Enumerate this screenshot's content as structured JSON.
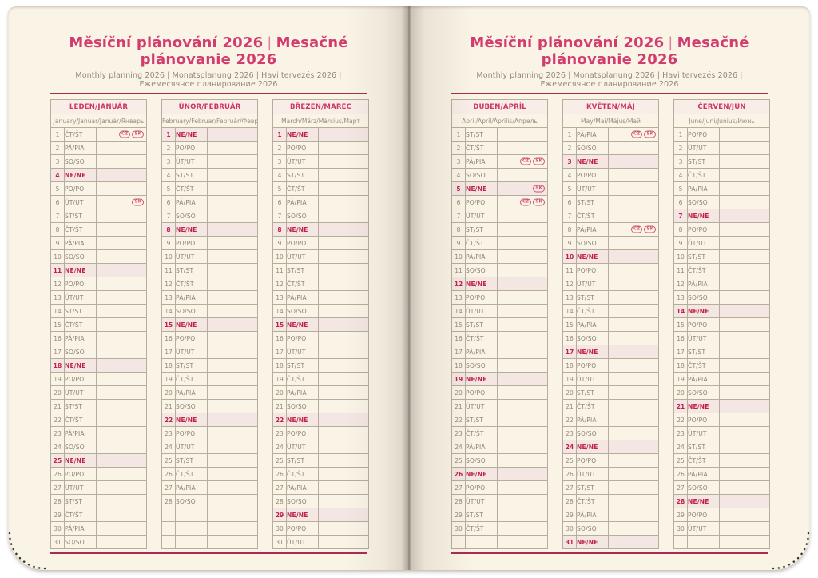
{
  "header": {
    "title_cz": "Měsíční plánování 2026",
    "separator": "|",
    "title_sk": "Mesačné plánovanie 2026",
    "subtitle": "Monthly planning 2026 | Monatsplanung 2026 | Havi tervezés 2026 | Ежемесячное планирование 2026"
  },
  "colors": {
    "title_pink": "#d23c6e",
    "rule_crimson": "#a82c52",
    "sunday_red": "#c02347",
    "sunday_row_bg": "#f4e7e3",
    "month_header_bg": "#f9ede8",
    "month_header_text": "#cf3464",
    "page_cream": "#faf4e7",
    "table_border": "#b6ad9d",
    "body_text": "#8a8173",
    "badge_red": "#cf5672"
  },
  "badge_labels": {
    "cz": "CZ",
    "sk": "SK"
  },
  "months": [
    {
      "id": "january",
      "title": "LEDEN/JANUÁR",
      "subtitle": "January/Januar/Január/Январь",
      "rows": [
        {
          "n": 1,
          "d": "ČT/ŠT",
          "b": [
            "CZ",
            "SK"
          ]
        },
        {
          "n": 2,
          "d": "PÁ/PIA"
        },
        {
          "n": 3,
          "d": "SO/SO"
        },
        {
          "n": 4,
          "d": "NE/NE",
          "s": true
        },
        {
          "n": 5,
          "d": "PO/PO"
        },
        {
          "n": 6,
          "d": "ÚT/UT",
          "b": [
            "SK"
          ]
        },
        {
          "n": 7,
          "d": "ST/ST"
        },
        {
          "n": 8,
          "d": "ČT/ŠT"
        },
        {
          "n": 9,
          "d": "PÁ/PIA"
        },
        {
          "n": 10,
          "d": "SO/SO"
        },
        {
          "n": 11,
          "d": "NE/NE",
          "s": true
        },
        {
          "n": 12,
          "d": "PO/PO"
        },
        {
          "n": 13,
          "d": "ÚT/UT"
        },
        {
          "n": 14,
          "d": "ST/ST"
        },
        {
          "n": 15,
          "d": "ČT/ŠT"
        },
        {
          "n": 16,
          "d": "PÁ/PIA"
        },
        {
          "n": 17,
          "d": "SO/SO"
        },
        {
          "n": 18,
          "d": "NE/NE",
          "s": true
        },
        {
          "n": 19,
          "d": "PO/PO"
        },
        {
          "n": 20,
          "d": "ÚT/UT"
        },
        {
          "n": 21,
          "d": "ST/ST"
        },
        {
          "n": 22,
          "d": "ČT/ŠT"
        },
        {
          "n": 23,
          "d": "PÁ/PIA"
        },
        {
          "n": 24,
          "d": "SO/SO"
        },
        {
          "n": 25,
          "d": "NE/NE",
          "s": true
        },
        {
          "n": 26,
          "d": "PO/PO"
        },
        {
          "n": 27,
          "d": "ÚT/UT"
        },
        {
          "n": 28,
          "d": "ST/ST"
        },
        {
          "n": 29,
          "d": "ČT/ŠT"
        },
        {
          "n": 30,
          "d": "PÁ/PIA"
        },
        {
          "n": 31,
          "d": "SO/SO"
        }
      ]
    },
    {
      "id": "february",
      "title": "ÚNOR/FEBRUÁR",
      "subtitle": "February/Februar/Február/Февраль",
      "rows": [
        {
          "n": 1,
          "d": "NE/NE",
          "s": true
        },
        {
          "n": 2,
          "d": "PO/PO"
        },
        {
          "n": 3,
          "d": "ÚT/UT"
        },
        {
          "n": 4,
          "d": "ST/ST"
        },
        {
          "n": 5,
          "d": "ČT/ŠT"
        },
        {
          "n": 6,
          "d": "PÁ/PIA"
        },
        {
          "n": 7,
          "d": "SO/SO"
        },
        {
          "n": 8,
          "d": "NE/NE",
          "s": true
        },
        {
          "n": 9,
          "d": "PO/PO"
        },
        {
          "n": 10,
          "d": "ÚT/UT"
        },
        {
          "n": 11,
          "d": "ST/ST"
        },
        {
          "n": 12,
          "d": "ČT/ŠT"
        },
        {
          "n": 13,
          "d": "PÁ/PIA"
        },
        {
          "n": 14,
          "d": "SO/SO"
        },
        {
          "n": 15,
          "d": "NE/NE",
          "s": true
        },
        {
          "n": 16,
          "d": "PO/PO"
        },
        {
          "n": 17,
          "d": "ÚT/UT"
        },
        {
          "n": 18,
          "d": "ST/ST"
        },
        {
          "n": 19,
          "d": "ČT/ŠT"
        },
        {
          "n": 20,
          "d": "PÁ/PIA"
        },
        {
          "n": 21,
          "d": "SO/SO"
        },
        {
          "n": 22,
          "d": "NE/NE",
          "s": true
        },
        {
          "n": 23,
          "d": "PO/PO"
        },
        {
          "n": 24,
          "d": "ÚT/UT"
        },
        {
          "n": 25,
          "d": "ST/ST"
        },
        {
          "n": 26,
          "d": "ČT/ŠT"
        },
        {
          "n": 27,
          "d": "PÁ/PIA"
        },
        {
          "n": 28,
          "d": "SO/SO"
        },
        {
          "n": "",
          "d": ""
        },
        {
          "n": "",
          "d": ""
        },
        {
          "n": "",
          "d": ""
        }
      ]
    },
    {
      "id": "march",
      "title": "BŘEZEN/MAREC",
      "subtitle": "March/März/Március/Март",
      "rows": [
        {
          "n": 1,
          "d": "NE/NE",
          "s": true
        },
        {
          "n": 2,
          "d": "PO/PO"
        },
        {
          "n": 3,
          "d": "ÚT/UT"
        },
        {
          "n": 4,
          "d": "ST/ST"
        },
        {
          "n": 5,
          "d": "ČT/ŠT"
        },
        {
          "n": 6,
          "d": "PÁ/PIA"
        },
        {
          "n": 7,
          "d": "SO/SO"
        },
        {
          "n": 8,
          "d": "NE/NE",
          "s": true
        },
        {
          "n": 9,
          "d": "PO/PO"
        },
        {
          "n": 10,
          "d": "ÚT/UT"
        },
        {
          "n": 11,
          "d": "ST/ST"
        },
        {
          "n": 12,
          "d": "ČT/ŠT"
        },
        {
          "n": 13,
          "d": "PÁ/PIA"
        },
        {
          "n": 14,
          "d": "SO/SO"
        },
        {
          "n": 15,
          "d": "NE/NE",
          "s": true
        },
        {
          "n": 16,
          "d": "PO/PO"
        },
        {
          "n": 17,
          "d": "ÚT/UT"
        },
        {
          "n": 18,
          "d": "ST/ST"
        },
        {
          "n": 19,
          "d": "ČT/ŠT"
        },
        {
          "n": 20,
          "d": "PÁ/PIA"
        },
        {
          "n": 21,
          "d": "SO/SO"
        },
        {
          "n": 22,
          "d": "NE/NE",
          "s": true
        },
        {
          "n": 23,
          "d": "PO/PO"
        },
        {
          "n": 24,
          "d": "ÚT/UT"
        },
        {
          "n": 25,
          "d": "ST/ST"
        },
        {
          "n": 26,
          "d": "ČT/ŠT"
        },
        {
          "n": 27,
          "d": "PÁ/PIA"
        },
        {
          "n": 28,
          "d": "SO/SO"
        },
        {
          "n": 29,
          "d": "NE/NE",
          "s": true
        },
        {
          "n": 30,
          "d": "PO/PO"
        },
        {
          "n": 31,
          "d": "ÚT/UT"
        }
      ]
    },
    {
      "id": "april",
      "title": "DUBEN/APRÍL",
      "subtitle": "April/April/Április/Апрель",
      "rows": [
        {
          "n": 1,
          "d": "ST/ST"
        },
        {
          "n": 2,
          "d": "ČT/ŠT"
        },
        {
          "n": 3,
          "d": "PÁ/PIA",
          "b": [
            "CZ",
            "SK"
          ]
        },
        {
          "n": 4,
          "d": "SO/SO"
        },
        {
          "n": 5,
          "d": "NE/NE",
          "s": true,
          "b": [
            "SK"
          ]
        },
        {
          "n": 6,
          "d": "PO/PO",
          "b": [
            "CZ",
            "SK"
          ]
        },
        {
          "n": 7,
          "d": "ÚT/UT"
        },
        {
          "n": 8,
          "d": "ST/ST"
        },
        {
          "n": 9,
          "d": "ČT/ŠT"
        },
        {
          "n": 10,
          "d": "PÁ/PIA"
        },
        {
          "n": 11,
          "d": "SO/SO"
        },
        {
          "n": 12,
          "d": "NE/NE",
          "s": true
        },
        {
          "n": 13,
          "d": "PO/PO"
        },
        {
          "n": 14,
          "d": "ÚT/UT"
        },
        {
          "n": 15,
          "d": "ST/ST"
        },
        {
          "n": 16,
          "d": "ČT/ŠT"
        },
        {
          "n": 17,
          "d": "PÁ/PIA"
        },
        {
          "n": 18,
          "d": "SO/SO"
        },
        {
          "n": 19,
          "d": "NE/NE",
          "s": true
        },
        {
          "n": 20,
          "d": "PO/PO"
        },
        {
          "n": 21,
          "d": "ÚT/UT"
        },
        {
          "n": 22,
          "d": "ST/ST"
        },
        {
          "n": 23,
          "d": "ČT/ŠT"
        },
        {
          "n": 24,
          "d": "PÁ/PIA"
        },
        {
          "n": 25,
          "d": "SO/SO"
        },
        {
          "n": 26,
          "d": "NE/NE",
          "s": true
        },
        {
          "n": 27,
          "d": "PO/PO"
        },
        {
          "n": 28,
          "d": "ÚT/UT"
        },
        {
          "n": 29,
          "d": "ST/ST"
        },
        {
          "n": 30,
          "d": "ČT/ŠT"
        },
        {
          "n": "",
          "d": ""
        }
      ]
    },
    {
      "id": "may",
      "title": "KVĚTEN/MÁJ",
      "subtitle": "May/Mai/Május/Май",
      "rows": [
        {
          "n": 1,
          "d": "PÁ/PIA",
          "b": [
            "CZ",
            "SK"
          ]
        },
        {
          "n": 2,
          "d": "SO/SO"
        },
        {
          "n": 3,
          "d": "NE/NE",
          "s": true
        },
        {
          "n": 4,
          "d": "PO/PO"
        },
        {
          "n": 5,
          "d": "ÚT/UT"
        },
        {
          "n": 6,
          "d": "ST/ST"
        },
        {
          "n": 7,
          "d": "ČT/ŠT"
        },
        {
          "n": 8,
          "d": "PÁ/PIA",
          "b": [
            "CZ",
            "SK"
          ]
        },
        {
          "n": 9,
          "d": "SO/SO"
        },
        {
          "n": 10,
          "d": "NE/NE",
          "s": true
        },
        {
          "n": 11,
          "d": "PO/PO"
        },
        {
          "n": 12,
          "d": "ÚT/UT"
        },
        {
          "n": 13,
          "d": "ST/ST"
        },
        {
          "n": 14,
          "d": "ČT/ŠT"
        },
        {
          "n": 15,
          "d": "PÁ/PIA"
        },
        {
          "n": 16,
          "d": "SO/SO"
        },
        {
          "n": 17,
          "d": "NE/NE",
          "s": true
        },
        {
          "n": 18,
          "d": "PO/PO"
        },
        {
          "n": 19,
          "d": "ÚT/UT"
        },
        {
          "n": 20,
          "d": "ST/ST"
        },
        {
          "n": 21,
          "d": "ČT/ŠT"
        },
        {
          "n": 22,
          "d": "PÁ/PIA"
        },
        {
          "n": 23,
          "d": "SO/SO"
        },
        {
          "n": 24,
          "d": "NE/NE",
          "s": true
        },
        {
          "n": 25,
          "d": "PO/PO"
        },
        {
          "n": 26,
          "d": "ÚT/UT"
        },
        {
          "n": 27,
          "d": "ST/ST"
        },
        {
          "n": 28,
          "d": "ČT/ŠT"
        },
        {
          "n": 29,
          "d": "PÁ/PIA"
        },
        {
          "n": 30,
          "d": "SO/SO"
        },
        {
          "n": 31,
          "d": "NE/NE",
          "s": true
        }
      ]
    },
    {
      "id": "june",
      "title": "ČERVEN/JÚN",
      "subtitle": "June/Juni/Június/Июнь",
      "rows": [
        {
          "n": 1,
          "d": "PO/PO"
        },
        {
          "n": 2,
          "d": "ÚT/UT"
        },
        {
          "n": 3,
          "d": "ST/ST"
        },
        {
          "n": 4,
          "d": "ČT/ŠT"
        },
        {
          "n": 5,
          "d": "PÁ/PIA"
        },
        {
          "n": 6,
          "d": "SO/SO"
        },
        {
          "n": 7,
          "d": "NE/NE",
          "s": true
        },
        {
          "n": 8,
          "d": "PO/PO"
        },
        {
          "n": 9,
          "d": "ÚT/UT"
        },
        {
          "n": 10,
          "d": "ST/ST"
        },
        {
          "n": 11,
          "d": "ČT/ŠT"
        },
        {
          "n": 12,
          "d": "PÁ/PIA"
        },
        {
          "n": 13,
          "d": "SO/SO"
        },
        {
          "n": 14,
          "d": "NE/NE",
          "s": true
        },
        {
          "n": 15,
          "d": "PO/PO"
        },
        {
          "n": 16,
          "d": "ÚT/UT"
        },
        {
          "n": 17,
          "d": "ST/ST"
        },
        {
          "n": 18,
          "d": "ČT/ŠT"
        },
        {
          "n": 19,
          "d": "PÁ/PIA"
        },
        {
          "n": 20,
          "d": "SO/SO"
        },
        {
          "n": 21,
          "d": "NE/NE",
          "s": true
        },
        {
          "n": 22,
          "d": "PO/PO"
        },
        {
          "n": 23,
          "d": "ÚT/UT"
        },
        {
          "n": 24,
          "d": "ST/ST"
        },
        {
          "n": 25,
          "d": "ČT/ŠT"
        },
        {
          "n": 26,
          "d": "PÁ/PIA"
        },
        {
          "n": 27,
          "d": "SO/SO"
        },
        {
          "n": 28,
          "d": "NE/NE",
          "s": true
        },
        {
          "n": 29,
          "d": "PO/PO"
        },
        {
          "n": 30,
          "d": "ÚT/UT"
        },
        {
          "n": "",
          "d": ""
        }
      ]
    }
  ]
}
